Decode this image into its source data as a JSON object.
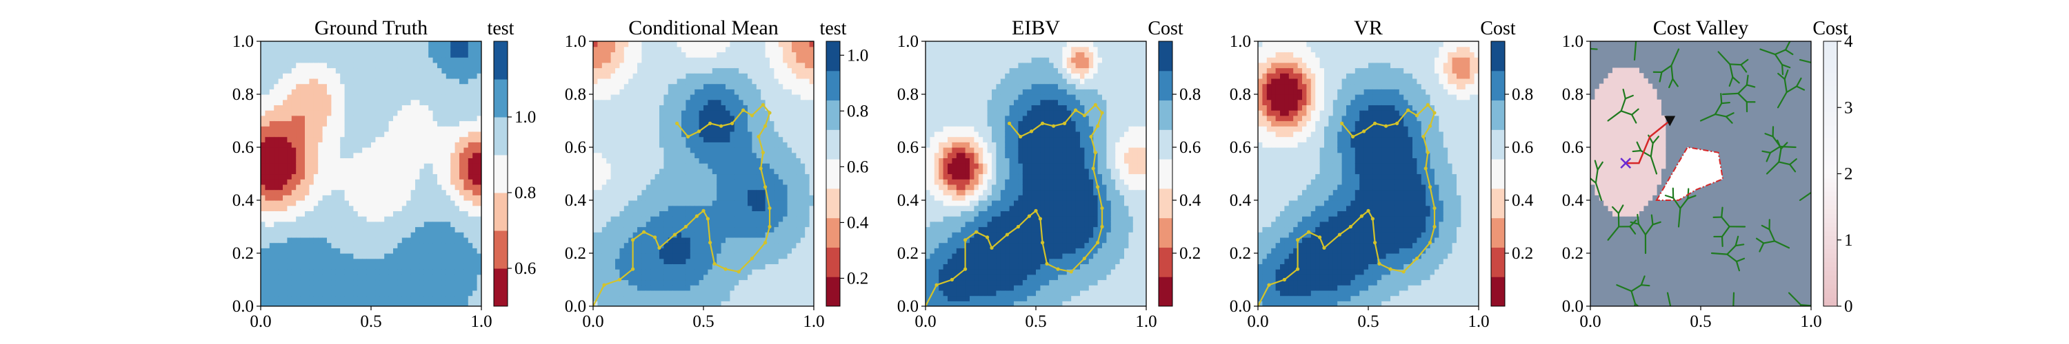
{
  "chart_data": [
    {
      "type": "heatmap",
      "title": "Ground Truth",
      "colorbar_label": "test",
      "colorbar_ticks": [
        "0.6",
        "0.8",
        "1.0"
      ],
      "colorbar_tick_values": [
        0.6,
        0.8,
        1.0
      ],
      "clim": [
        0.5,
        1.2
      ],
      "levels": 7,
      "xlim": [
        0,
        1
      ],
      "ylim": [
        0,
        1
      ],
      "x_ticks": [
        "0.0",
        "0.5",
        "1.0"
      ],
      "y_ticks": [
        "0.0",
        "0.2",
        "0.4",
        "0.6",
        "0.8",
        "1.0"
      ],
      "field": [
        {
          "x": 0.06,
          "y": 0.54,
          "amp": -0.5,
          "s": 0.13
        },
        {
          "x": 1.0,
          "y": 0.52,
          "amp": -0.48,
          "s": 0.1
        },
        {
          "x": 0.24,
          "y": 0.78,
          "amp": -0.22,
          "s": 0.1
        },
        {
          "x": 0.55,
          "y": 0.45,
          "amp": -0.16,
          "s": 0.13
        },
        {
          "x": 0.7,
          "y": 0.7,
          "amp": -0.1,
          "s": 0.1
        },
        {
          "x": 0.9,
          "y": 0.98,
          "amp": 0.15,
          "s": 0.07
        },
        {
          "x": 0.15,
          "y": 0.08,
          "amp": 0.12,
          "s": 0.14
        },
        {
          "x": 0.75,
          "y": 0.18,
          "amp": 0.08,
          "s": 0.15
        },
        {
          "x": 0.45,
          "y": 0.05,
          "amp": 0.1,
          "s": 0.07
        }
      ],
      "base": 0.98
    },
    {
      "type": "heatmap",
      "title": "Conditional Mean",
      "colorbar_label": "test",
      "colorbar_ticks": [
        "0.2",
        "0.4",
        "0.6",
        "0.8",
        "1.0"
      ],
      "colorbar_tick_values": [
        0.2,
        0.4,
        0.6,
        0.8,
        1.0
      ],
      "clim": [
        0.1,
        1.05
      ],
      "levels": 9,
      "xlim": [
        0,
        1
      ],
      "ylim": [
        0,
        1
      ],
      "x_ticks": [
        "0.0",
        "0.5",
        "1.0"
      ],
      "y_ticks": [
        "0.0",
        "0.2",
        "0.4",
        "0.6",
        "0.8",
        "1.0"
      ],
      "field": [
        {
          "x": 0.0,
          "y": 1.0,
          "amp": -0.4,
          "s": 0.12
        },
        {
          "x": 1.0,
          "y": 1.0,
          "amp": -0.4,
          "s": 0.12
        },
        {
          "x": 0.5,
          "y": 1.05,
          "amp": -0.2,
          "s": 0.1
        },
        {
          "x": 0.0,
          "y": 0.5,
          "amp": -0.1,
          "s": 0.1
        },
        {
          "x": 0.55,
          "y": 0.7,
          "amp": 0.3,
          "s": 0.12
        },
        {
          "x": 0.75,
          "y": 0.4,
          "amp": 0.25,
          "s": 0.12
        },
        {
          "x": 0.4,
          "y": 0.22,
          "amp": 0.25,
          "s": 0.14
        },
        {
          "x": 0.15,
          "y": 0.15,
          "amp": 0.12,
          "s": 0.12
        }
      ],
      "base": 0.7
    },
    {
      "type": "heatmap",
      "title": "EIBV",
      "colorbar_label": "Cost",
      "colorbar_ticks": [
        "0.2",
        "0.4",
        "0.6",
        "0.8"
      ],
      "colorbar_tick_values": [
        0.2,
        0.4,
        0.6,
        0.8
      ],
      "clim": [
        0.0,
        1.0
      ],
      "levels": 9,
      "xlim": [
        0,
        1
      ],
      "ylim": [
        0,
        1
      ],
      "x_ticks": [
        "0.0",
        "0.5",
        "1.0"
      ],
      "y_ticks": [
        "0.0",
        "0.2",
        "0.4",
        "0.6",
        "0.8",
        "1.0"
      ],
      "field": [
        {
          "x": 0.16,
          "y": 0.52,
          "amp": -0.65,
          "s": 0.08
        },
        {
          "x": 0.7,
          "y": 0.92,
          "amp": -0.4,
          "s": 0.05
        },
        {
          "x": 0.95,
          "y": 0.55,
          "amp": -0.25,
          "s": 0.08
        },
        {
          "x": 0.55,
          "y": 0.65,
          "amp": 0.4,
          "s": 0.14
        },
        {
          "x": 0.65,
          "y": 0.35,
          "amp": 0.4,
          "s": 0.14
        },
        {
          "x": 0.35,
          "y": 0.2,
          "amp": 0.4,
          "s": 0.14
        },
        {
          "x": 0.1,
          "y": 0.08,
          "amp": 0.25,
          "s": 0.12
        }
      ],
      "base": 0.62
    },
    {
      "type": "heatmap",
      "title": "VR",
      "colorbar_label": "Cost",
      "colorbar_ticks": [
        "0.2",
        "0.4",
        "0.6",
        "0.8"
      ],
      "colorbar_tick_values": [
        0.2,
        0.4,
        0.6,
        0.8
      ],
      "clim": [
        0.0,
        1.0
      ],
      "levels": 9,
      "xlim": [
        0,
        1
      ],
      "ylim": [
        0,
        1
      ],
      "x_ticks": [
        "0.0",
        "0.5",
        "1.0"
      ],
      "y_ticks": [
        "0.0",
        "0.2",
        "0.4",
        "0.6",
        "0.8",
        "1.0"
      ],
      "field": [
        {
          "x": 0.12,
          "y": 0.8,
          "amp": -0.7,
          "s": 0.09
        },
        {
          "x": 0.92,
          "y": 0.9,
          "amp": -0.35,
          "s": 0.06
        },
        {
          "x": 0.55,
          "y": 0.65,
          "amp": 0.4,
          "s": 0.14
        },
        {
          "x": 0.65,
          "y": 0.35,
          "amp": 0.4,
          "s": 0.14
        },
        {
          "x": 0.35,
          "y": 0.2,
          "amp": 0.4,
          "s": 0.14
        },
        {
          "x": 0.1,
          "y": 0.08,
          "amp": 0.25,
          "s": 0.12
        }
      ],
      "base": 0.6
    },
    {
      "type": "heatmap",
      "title": "Cost Valley",
      "colorbar_label": "Cost",
      "colorbar_ticks": [
        "0",
        "1",
        "2",
        "3",
        "4"
      ],
      "colorbar_tick_values": [
        0,
        1,
        2,
        3,
        4
      ],
      "clim": [
        0,
        4
      ],
      "xlim": [
        0,
        1
      ],
      "ylim": [
        0,
        1
      ],
      "x_ticks": [
        "0.0",
        "0.5",
        "1.0"
      ],
      "y_ticks": [
        "0.0",
        "0.2",
        "0.4",
        "0.6",
        "0.8",
        "1.0"
      ]
    }
  ],
  "paths": {
    "trajectory": [
      [
        0.0,
        0.0
      ],
      [
        0.05,
        0.08
      ],
      [
        0.12,
        0.1
      ],
      [
        0.18,
        0.14
      ],
      [
        0.18,
        0.25
      ],
      [
        0.23,
        0.28
      ],
      [
        0.28,
        0.26
      ],
      [
        0.3,
        0.22
      ],
      [
        0.37,
        0.27
      ],
      [
        0.42,
        0.3
      ],
      [
        0.47,
        0.34
      ],
      [
        0.5,
        0.36
      ],
      [
        0.52,
        0.33
      ],
      [
        0.53,
        0.24
      ],
      [
        0.55,
        0.16
      ],
      [
        0.6,
        0.14
      ],
      [
        0.66,
        0.13
      ],
      [
        0.72,
        0.18
      ],
      [
        0.78,
        0.24
      ],
      [
        0.8,
        0.3
      ],
      [
        0.8,
        0.37
      ],
      [
        0.78,
        0.45
      ],
      [
        0.76,
        0.52
      ],
      [
        0.77,
        0.58
      ],
      [
        0.75,
        0.64
      ],
      [
        0.78,
        0.68
      ],
      [
        0.8,
        0.73
      ],
      [
        0.77,
        0.76
      ],
      [
        0.72,
        0.72
      ],
      [
        0.68,
        0.74
      ],
      [
        0.63,
        0.69
      ],
      [
        0.58,
        0.68
      ],
      [
        0.53,
        0.69
      ],
      [
        0.48,
        0.66
      ],
      [
        0.43,
        0.64
      ],
      [
        0.38,
        0.69
      ]
    ]
  },
  "cost_valley": {
    "start": [
      0.16,
      0.54
    ],
    "goal": [
      0.36,
      0.7
    ],
    "route": [
      [
        0.16,
        0.54
      ],
      [
        0.22,
        0.54
      ],
      [
        0.27,
        0.64
      ],
      [
        0.36,
        0.7
      ]
    ],
    "polygon": [
      [
        0.3,
        0.4
      ],
      [
        0.44,
        0.6
      ],
      [
        0.58,
        0.58
      ],
      [
        0.6,
        0.48
      ],
      [
        0.48,
        0.44
      ],
      [
        0.4,
        0.4
      ]
    ],
    "tree_seeds": [
      [
        0.03,
        0.97
      ],
      [
        0.2,
        0.93
      ],
      [
        0.4,
        0.97
      ],
      [
        0.58,
        0.96
      ],
      [
        0.77,
        0.97
      ],
      [
        0.95,
        0.93
      ],
      [
        0.6,
        0.8
      ],
      [
        0.85,
        0.75
      ],
      [
        0.93,
        0.6
      ],
      [
        0.8,
        0.5
      ],
      [
        0.95,
        0.4
      ],
      [
        0.7,
        0.3
      ],
      [
        0.9,
        0.22
      ],
      [
        0.55,
        0.2
      ],
      [
        0.4,
        0.3
      ],
      [
        0.25,
        0.2
      ],
      [
        0.08,
        0.25
      ],
      [
        0.12,
        0.08
      ],
      [
        0.35,
        0.05
      ],
      [
        0.65,
        0.05
      ],
      [
        0.9,
        0.05
      ],
      [
        0.05,
        0.4
      ],
      [
        0.08,
        0.7
      ],
      [
        0.3,
        0.5
      ],
      [
        0.5,
        0.7
      ]
    ]
  },
  "colors": {
    "trajectory": "#d4c32a",
    "tree": "#1f7a1f",
    "route": "#d62728",
    "polygon": "#d62728",
    "start_marker": "#6a2bd4",
    "goal_marker": "#111111"
  }
}
